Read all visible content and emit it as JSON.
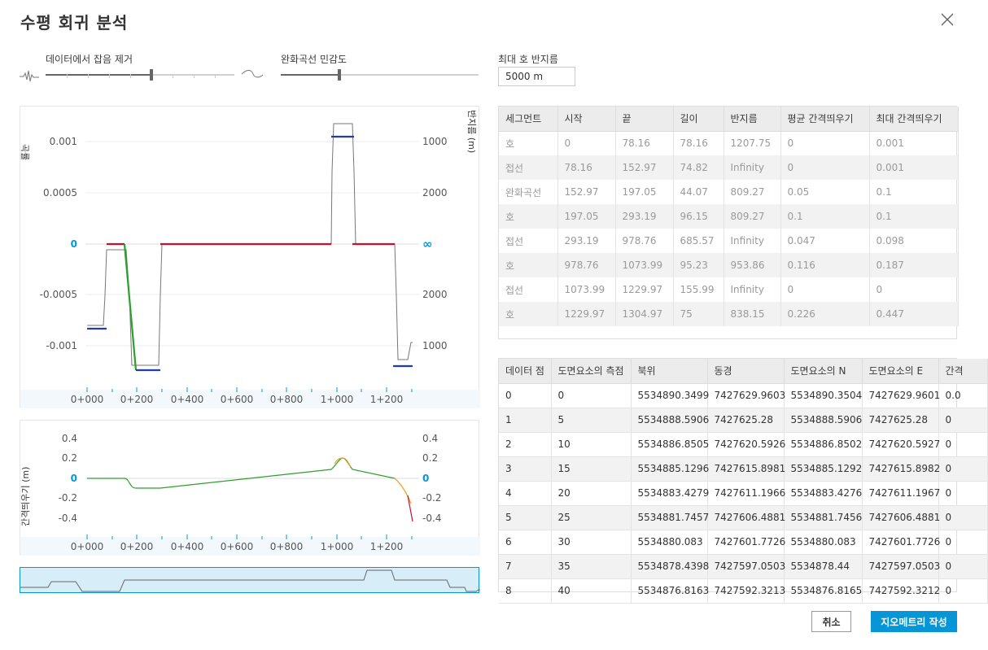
{
  "dialog": {
    "title": "수평 회귀 분석"
  },
  "controls": {
    "noise_label": "데이터에서 잡음 제거",
    "sensitivity_label": "완화곡선 민감도",
    "max_radius_label": "최대 호 반지름",
    "max_radius_value": "5000 m"
  },
  "curvature_chart": {
    "left_label": "곡률",
    "right_label": "반지름 (m)",
    "left_ticks": [
      "0.001",
      "0.0005",
      "0",
      "-0.0005",
      "-0.001"
    ],
    "right_ticks": [
      "1000",
      "2000",
      "∞",
      "2000",
      "1000"
    ],
    "x_ticks": [
      "0+000",
      "0+200",
      "0+400",
      "0+600",
      "0+800",
      "1+000",
      "1+200"
    ]
  },
  "offset_chart": {
    "left_label": "간격띄우기 (m)",
    "left_ticks": [
      "0.4",
      "0.2",
      "0",
      "-0.2",
      "-0.4"
    ],
    "right_ticks": [
      "0.4",
      "0.2",
      "0",
      "-0.2",
      "-0.4"
    ],
    "x_ticks": [
      "0+000",
      "0+200",
      "0+400",
      "0+600",
      "0+800",
      "1+000",
      "1+200"
    ]
  },
  "segments_table": {
    "headers": [
      "세그먼트",
      "시작",
      "끝",
      "길이",
      "반지름",
      "평균 간격띄우기",
      "최대 간격띄우기"
    ],
    "rows": [
      [
        "호",
        "0",
        "78.16",
        "78.16",
        "1207.75",
        "0",
        "0.001"
      ],
      [
        "접선",
        "78.16",
        "152.97",
        "74.82",
        "Infinity",
        "0",
        "0.001"
      ],
      [
        "완화곡선",
        "152.97",
        "197.05",
        "44.07",
        "809.27",
        "0.05",
        "0.1"
      ],
      [
        "호",
        "197.05",
        "293.19",
        "96.15",
        "809.27",
        "0.1",
        "0.1"
      ],
      [
        "접선",
        "293.19",
        "978.76",
        "685.57",
        "Infinity",
        "0.047",
        "0.098"
      ],
      [
        "호",
        "978.76",
        "1073.99",
        "95.23",
        "953.86",
        "0.116",
        "0.187"
      ],
      [
        "접선",
        "1073.99",
        "1229.97",
        "155.99",
        "Infinity",
        "0",
        "0"
      ],
      [
        "호",
        "1229.97",
        "1304.97",
        "75",
        "838.15",
        "0.226",
        "0.447"
      ]
    ]
  },
  "points_table": {
    "headers": [
      "데이터 점",
      "도면요소의 측점",
      "북위",
      "동경",
      "도면요소의 N",
      "도면요소의 E",
      "간격"
    ],
    "rows": [
      [
        "0",
        "0",
        "5534890.3499",
        "7427629.9603",
        "5534890.3504",
        "7427629.9601",
        "0.0"
      ],
      [
        "1",
        "5",
        "5534888.5906",
        "7427625.28",
        "5534888.5906",
        "7427625.28",
        "0"
      ],
      [
        "2",
        "10",
        "5534886.8505",
        "7427620.5926",
        "5534886.8502",
        "7427620.5927",
        "0"
      ],
      [
        "3",
        "15",
        "5534885.1296",
        "7427615.8981",
        "5534885.1292",
        "7427615.8982",
        "0"
      ],
      [
        "4",
        "20",
        "5534883.4279",
        "7427611.1966",
        "5534883.4276",
        "7427611.1967",
        "0"
      ],
      [
        "5",
        "25",
        "5534881.7457",
        "7427606.4881",
        "5534881.7456",
        "7427606.4881",
        "0"
      ],
      [
        "6",
        "30",
        "5534880.083",
        "7427601.7726",
        "5534880.083",
        "7427601.7726",
        "0"
      ],
      [
        "7",
        "35",
        "5534878.4398",
        "7427597.0503",
        "5534878.44",
        "7427597.0503",
        "0"
      ],
      [
        "8",
        "40",
        "5534876.8163",
        "7427592.3213",
        "5534876.8165",
        "7427592.3212",
        "0"
      ]
    ]
  },
  "buttons": {
    "cancel": "취소",
    "create": "지오메트리 작성"
  },
  "colors": {
    "accent": "#0696d7",
    "tangent": "#c8102e",
    "spiral": "#2ca02c",
    "arc": "#1f3ea8",
    "raw": "#777777"
  }
}
